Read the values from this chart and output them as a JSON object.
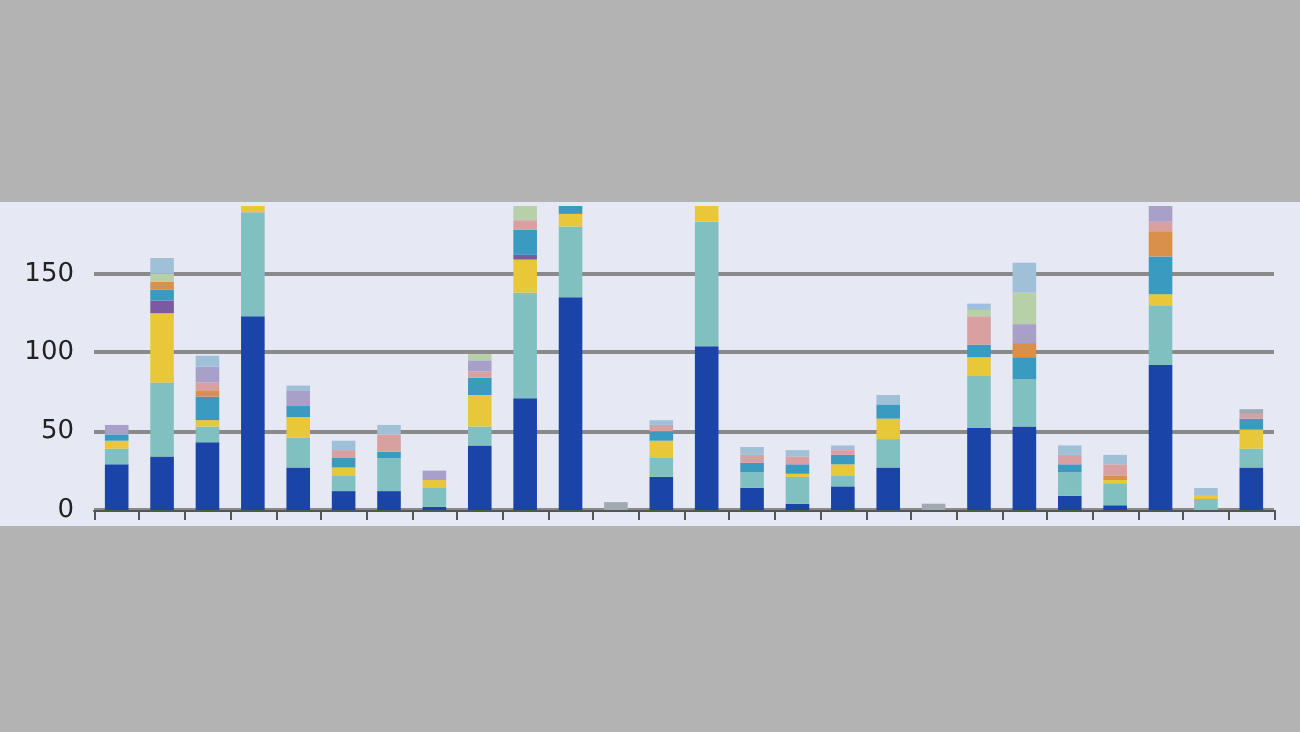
{
  "chart_data": {
    "type": "bar",
    "stacked": true,
    "grid": "y",
    "categories": [
      null,
      null,
      null,
      null,
      null,
      null,
      null,
      null,
      null,
      null,
      null,
      null,
      null,
      null,
      null,
      null,
      null,
      null,
      null,
      null,
      null,
      null,
      null,
      null,
      null,
      null
    ],
    "ylim": [
      0,
      193
    ],
    "yticks": [
      0,
      50,
      100,
      150
    ],
    "series": [
      {
        "color": "#1a44a8",
        "values": [
          29,
          34,
          43,
          123,
          27,
          12,
          12,
          2,
          41,
          71,
          135,
          null,
          21,
          104,
          14,
          4,
          15,
          27,
          null,
          52,
          53,
          9,
          3,
          92,
          null,
          27
        ]
      },
      {
        "color": "#80c0c0",
        "values": [
          10,
          47,
          10,
          66,
          19,
          10,
          21,
          12,
          12,
          67,
          45,
          null,
          12,
          79,
          10,
          17,
          7,
          18,
          null,
          33,
          30,
          15,
          14,
          38,
          7,
          12
        ]
      },
      {
        "color": "#e8c838",
        "values": [
          5,
          44,
          4,
          4,
          13,
          5,
          null,
          5,
          20,
          21,
          8,
          null,
          11,
          10,
          null,
          2,
          7,
          13,
          null,
          12,
          null,
          null,
          2,
          7,
          2,
          12
        ]
      },
      {
        "color": "#7a5aa0",
        "values": [
          null,
          8,
          null,
          null,
          null,
          null,
          null,
          null,
          null,
          3,
          null,
          null,
          null,
          null,
          null,
          null,
          null,
          null,
          null,
          null,
          null,
          null,
          null,
          null,
          null,
          null
        ]
      },
      {
        "color": "#3a9ac0",
        "values": [
          4,
          7,
          15,
          null,
          7,
          6,
          4,
          null,
          11,
          16,
          5,
          null,
          6,
          null,
          6,
          6,
          6,
          9,
          null,
          8,
          14,
          5,
          null,
          24,
          null,
          7
        ]
      },
      {
        "color": "#d8904a",
        "values": [
          null,
          5,
          4,
          null,
          null,
          null,
          null,
          null,
          null,
          null,
          null,
          null,
          null,
          null,
          null,
          null,
          null,
          null,
          null,
          null,
          9,
          null,
          3,
          16,
          null,
          null
        ]
      },
      {
        "color": "#d8a0a0",
        "values": [
          null,
          null,
          5,
          null,
          null,
          5,
          11,
          null,
          4,
          6,
          null,
          null,
          4,
          null,
          5,
          5,
          3,
          null,
          null,
          18,
          null,
          6,
          7,
          6,
          null,
          3
        ]
      },
      {
        "color": "#a8a0c8",
        "values": [
          6,
          null,
          10,
          null,
          10,
          null,
          null,
          6,
          7,
          null,
          null,
          null,
          null,
          null,
          null,
          null,
          null,
          null,
          null,
          null,
          12,
          null,
          null,
          10,
          null,
          null
        ]
      },
      {
        "color": "#b8d0a8",
        "values": [
          null,
          5,
          null,
          null,
          null,
          null,
          null,
          null,
          4,
          9,
          null,
          null,
          null,
          null,
          null,
          null,
          null,
          null,
          null,
          4,
          20,
          null,
          null,
          null,
          null,
          null
        ]
      },
      {
        "color": "#a0c0d8",
        "values": [
          null,
          10,
          7,
          null,
          3,
          6,
          6,
          null,
          null,
          null,
          null,
          null,
          3,
          null,
          5,
          4,
          3,
          6,
          null,
          4,
          19,
          6,
          6,
          null,
          5,
          null
        ]
      },
      {
        "color": "#a0a8b0",
        "values": [
          null,
          null,
          null,
          null,
          null,
          null,
          null,
          null,
          null,
          null,
          null,
          5,
          null,
          null,
          null,
          null,
          null,
          null,
          4,
          null,
          null,
          null,
          null,
          null,
          null,
          3
        ]
      }
    ]
  }
}
